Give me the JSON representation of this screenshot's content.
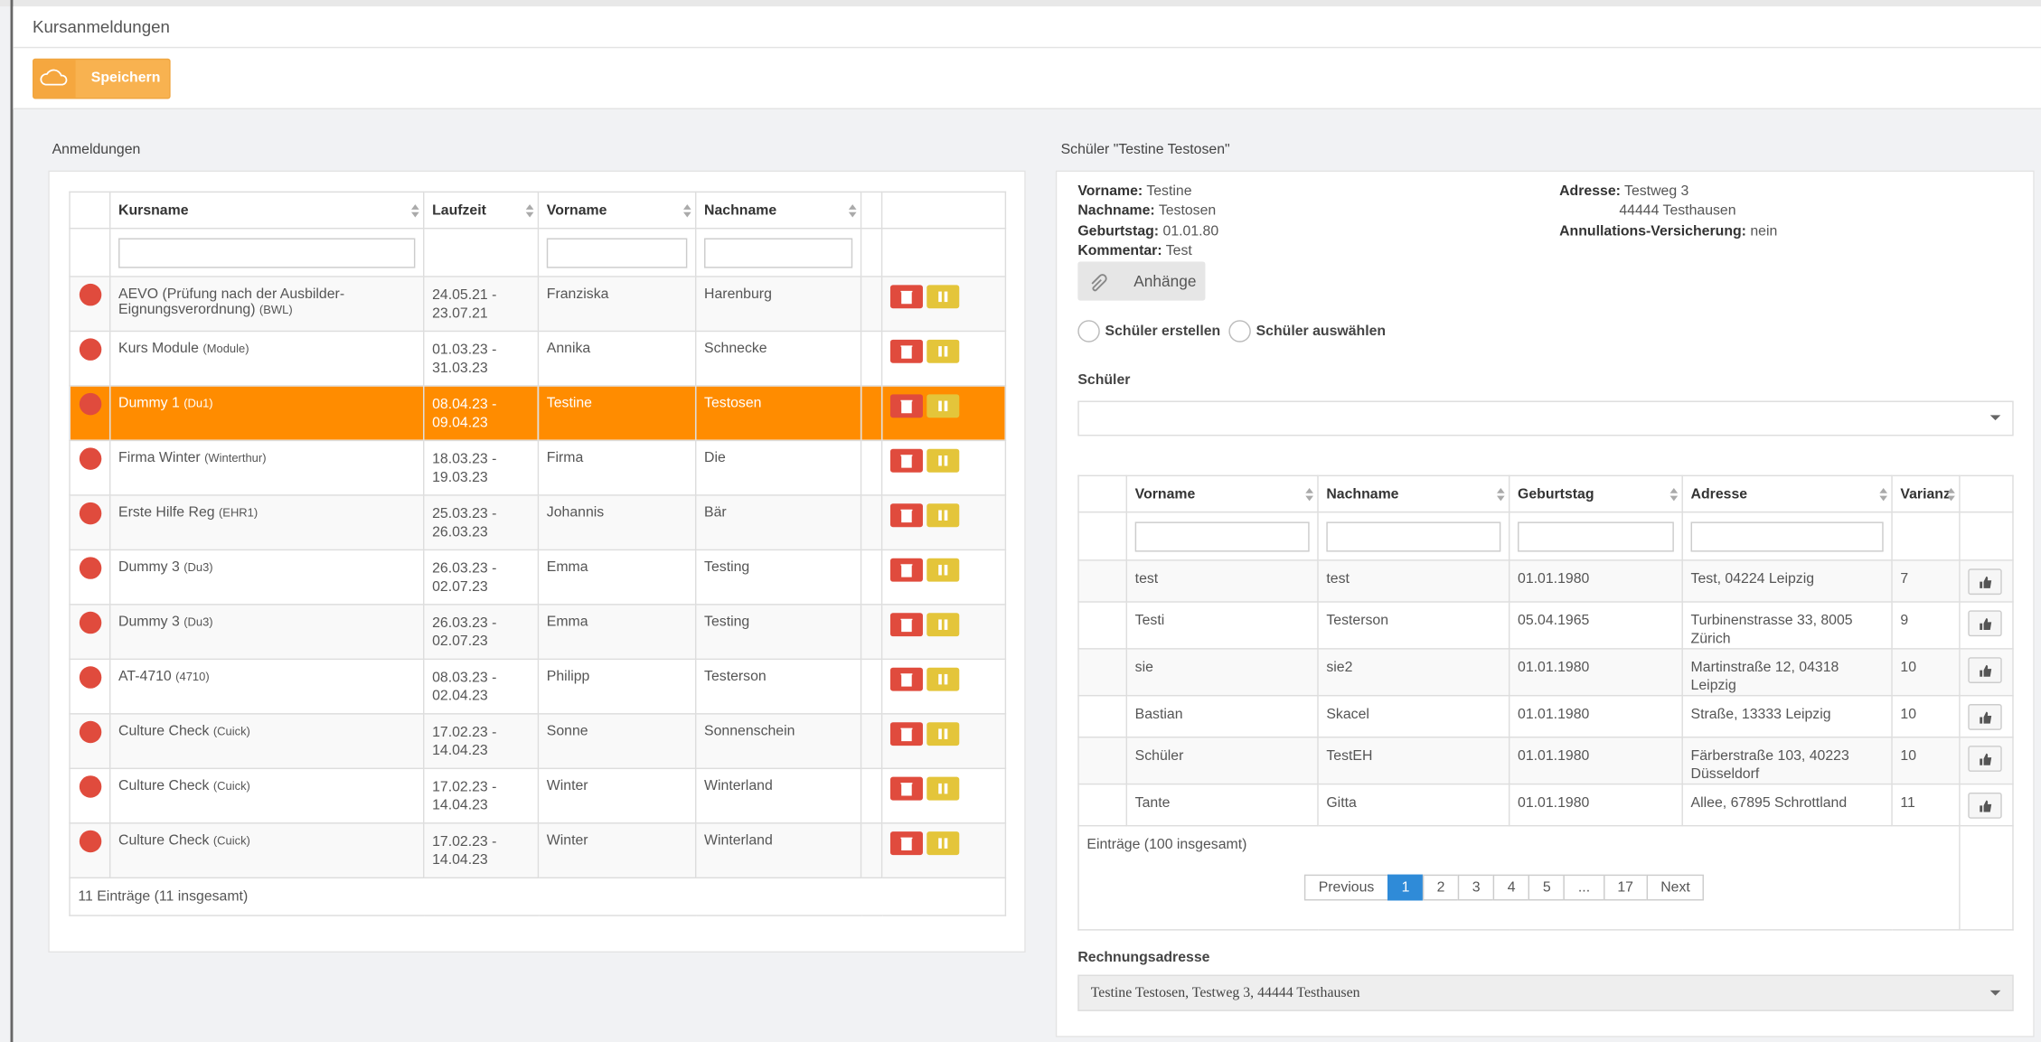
{
  "header": {
    "title": "Kursanmeldungen"
  },
  "toolbar": {
    "save": "Speichern"
  },
  "anmeldungen": {
    "title": "Anmeldungen",
    "columns": [
      "Kursname",
      "Laufzeit",
      "Vorname",
      "Nachname"
    ],
    "rows": [
      {
        "kurs": "AEVO (Prüfung nach der Ausbilder-Eignungsverordnung)",
        "code": "(BWL)",
        "laufzeit": "24.05.21 - 23.07.21",
        "vorname": "Franziska",
        "nachname": "Harenburg"
      },
      {
        "kurs": "Kurs Module",
        "code": "(Module)",
        "laufzeit": "01.03.23 - 31.03.23",
        "vorname": "Annika",
        "nachname": "Schnecke"
      },
      {
        "kurs": "Dummy 1",
        "code": "(Du1)",
        "laufzeit": "08.04.23 - 09.04.23",
        "vorname": "Testine",
        "nachname": "Testosen",
        "selected": true
      },
      {
        "kurs": "Firma Winter",
        "code": "(Winterthur)",
        "laufzeit": "18.03.23 - 19.03.23",
        "vorname": "Firma",
        "nachname": "Die"
      },
      {
        "kurs": "Erste Hilfe Reg",
        "code": "(EHR1)",
        "laufzeit": "25.03.23 - 26.03.23",
        "vorname": "Johannis",
        "nachname": "Bär"
      },
      {
        "kurs": "Dummy 3",
        "code": "(Du3)",
        "laufzeit": "26.03.23 - 02.07.23",
        "vorname": "Emma",
        "nachname": "Testing"
      },
      {
        "kurs": "Dummy 3",
        "code": "(Du3)",
        "laufzeit": "26.03.23 - 02.07.23",
        "vorname": "Emma",
        "nachname": "Testing"
      },
      {
        "kurs": "AT-4710",
        "code": "(4710)",
        "laufzeit": "08.03.23 - 02.04.23",
        "vorname": "Philipp",
        "nachname": "Testerson"
      },
      {
        "kurs": "Culture Check",
        "code": "(Cuick)",
        "laufzeit": "17.02.23 - 14.04.23",
        "vorname": "Sonne",
        "nachname": "Sonnenschein"
      },
      {
        "kurs": "Culture Check",
        "code": "(Cuick)",
        "laufzeit": "17.02.23 - 14.04.23",
        "vorname": "Winter",
        "nachname": "Winterland"
      },
      {
        "kurs": "Culture Check",
        "code": "(Cuick)",
        "laufzeit": "17.02.23 - 14.04.23",
        "vorname": "Winter",
        "nachname": "Winterland"
      }
    ],
    "footer": "11 Einträge (11 insgesamt)"
  },
  "schueler": {
    "title": "Schüler \"Testine Testosen\"",
    "details_left": [
      {
        "label": "Vorname:",
        "value": "Testine"
      },
      {
        "label": "Nachname:",
        "value": "Testosen"
      },
      {
        "label": "Geburtstag:",
        "value": "01.01.80"
      },
      {
        "label": "Kommentar:",
        "value": "Test"
      }
    ],
    "details_right": [
      {
        "label": "Adresse:",
        "value": "Testweg 3",
        "value2": "44444 Testhausen"
      },
      {
        "label": "Annullations-Versicherung:",
        "value": "nein"
      }
    ],
    "attachments": "Anhänge",
    "radios": [
      "Schüler erstellen",
      "Schüler auswählen"
    ],
    "select_label": "Schüler",
    "columns": [
      "Vorname",
      "Nachname",
      "Geburtstag",
      "Adresse",
      "Varianz"
    ],
    "rows": [
      {
        "vorname": "test",
        "nachname": "test",
        "geburtstag": "01.01.1980",
        "adresse": "Test, 04224 Leipzig",
        "varianz": 7
      },
      {
        "vorname": "Testi",
        "nachname": "Testerson",
        "geburtstag": "05.04.1965",
        "adresse": "Turbinenstrasse 33, 8005 Zürich",
        "varianz": 9
      },
      {
        "vorname": "sie",
        "nachname": "sie2",
        "geburtstag": "01.01.1980",
        "adresse": "Martinstraße 12, 04318 Leipzig",
        "varianz": 10
      },
      {
        "vorname": "Bastian",
        "nachname": "Skacel",
        "geburtstag": "01.01.1980",
        "adresse": "Straße, 13333 Leipzig",
        "varianz": 10
      },
      {
        "vorname": "Schüler",
        "nachname": "TestEH",
        "geburtstag": "01.01.1980",
        "adresse": "Färberstraße 103, 40223 Düsseldorf",
        "varianz": 10
      },
      {
        "vorname": "Tante",
        "nachname": "Gitta",
        "geburtstag": "01.01.1980",
        "adresse": "Allee, 67895 Schrottland",
        "varianz": 11
      }
    ],
    "footer": "Einträge (100 insgesamt)",
    "pagination": [
      "Previous",
      "1",
      "2",
      "3",
      "4",
      "5",
      "...",
      "17",
      "Next"
    ],
    "active_index": 1,
    "billing_label": "Rechnungsadresse",
    "billing_value": "Testine Testosen, Testweg 3, 44444 Testhausen"
  }
}
